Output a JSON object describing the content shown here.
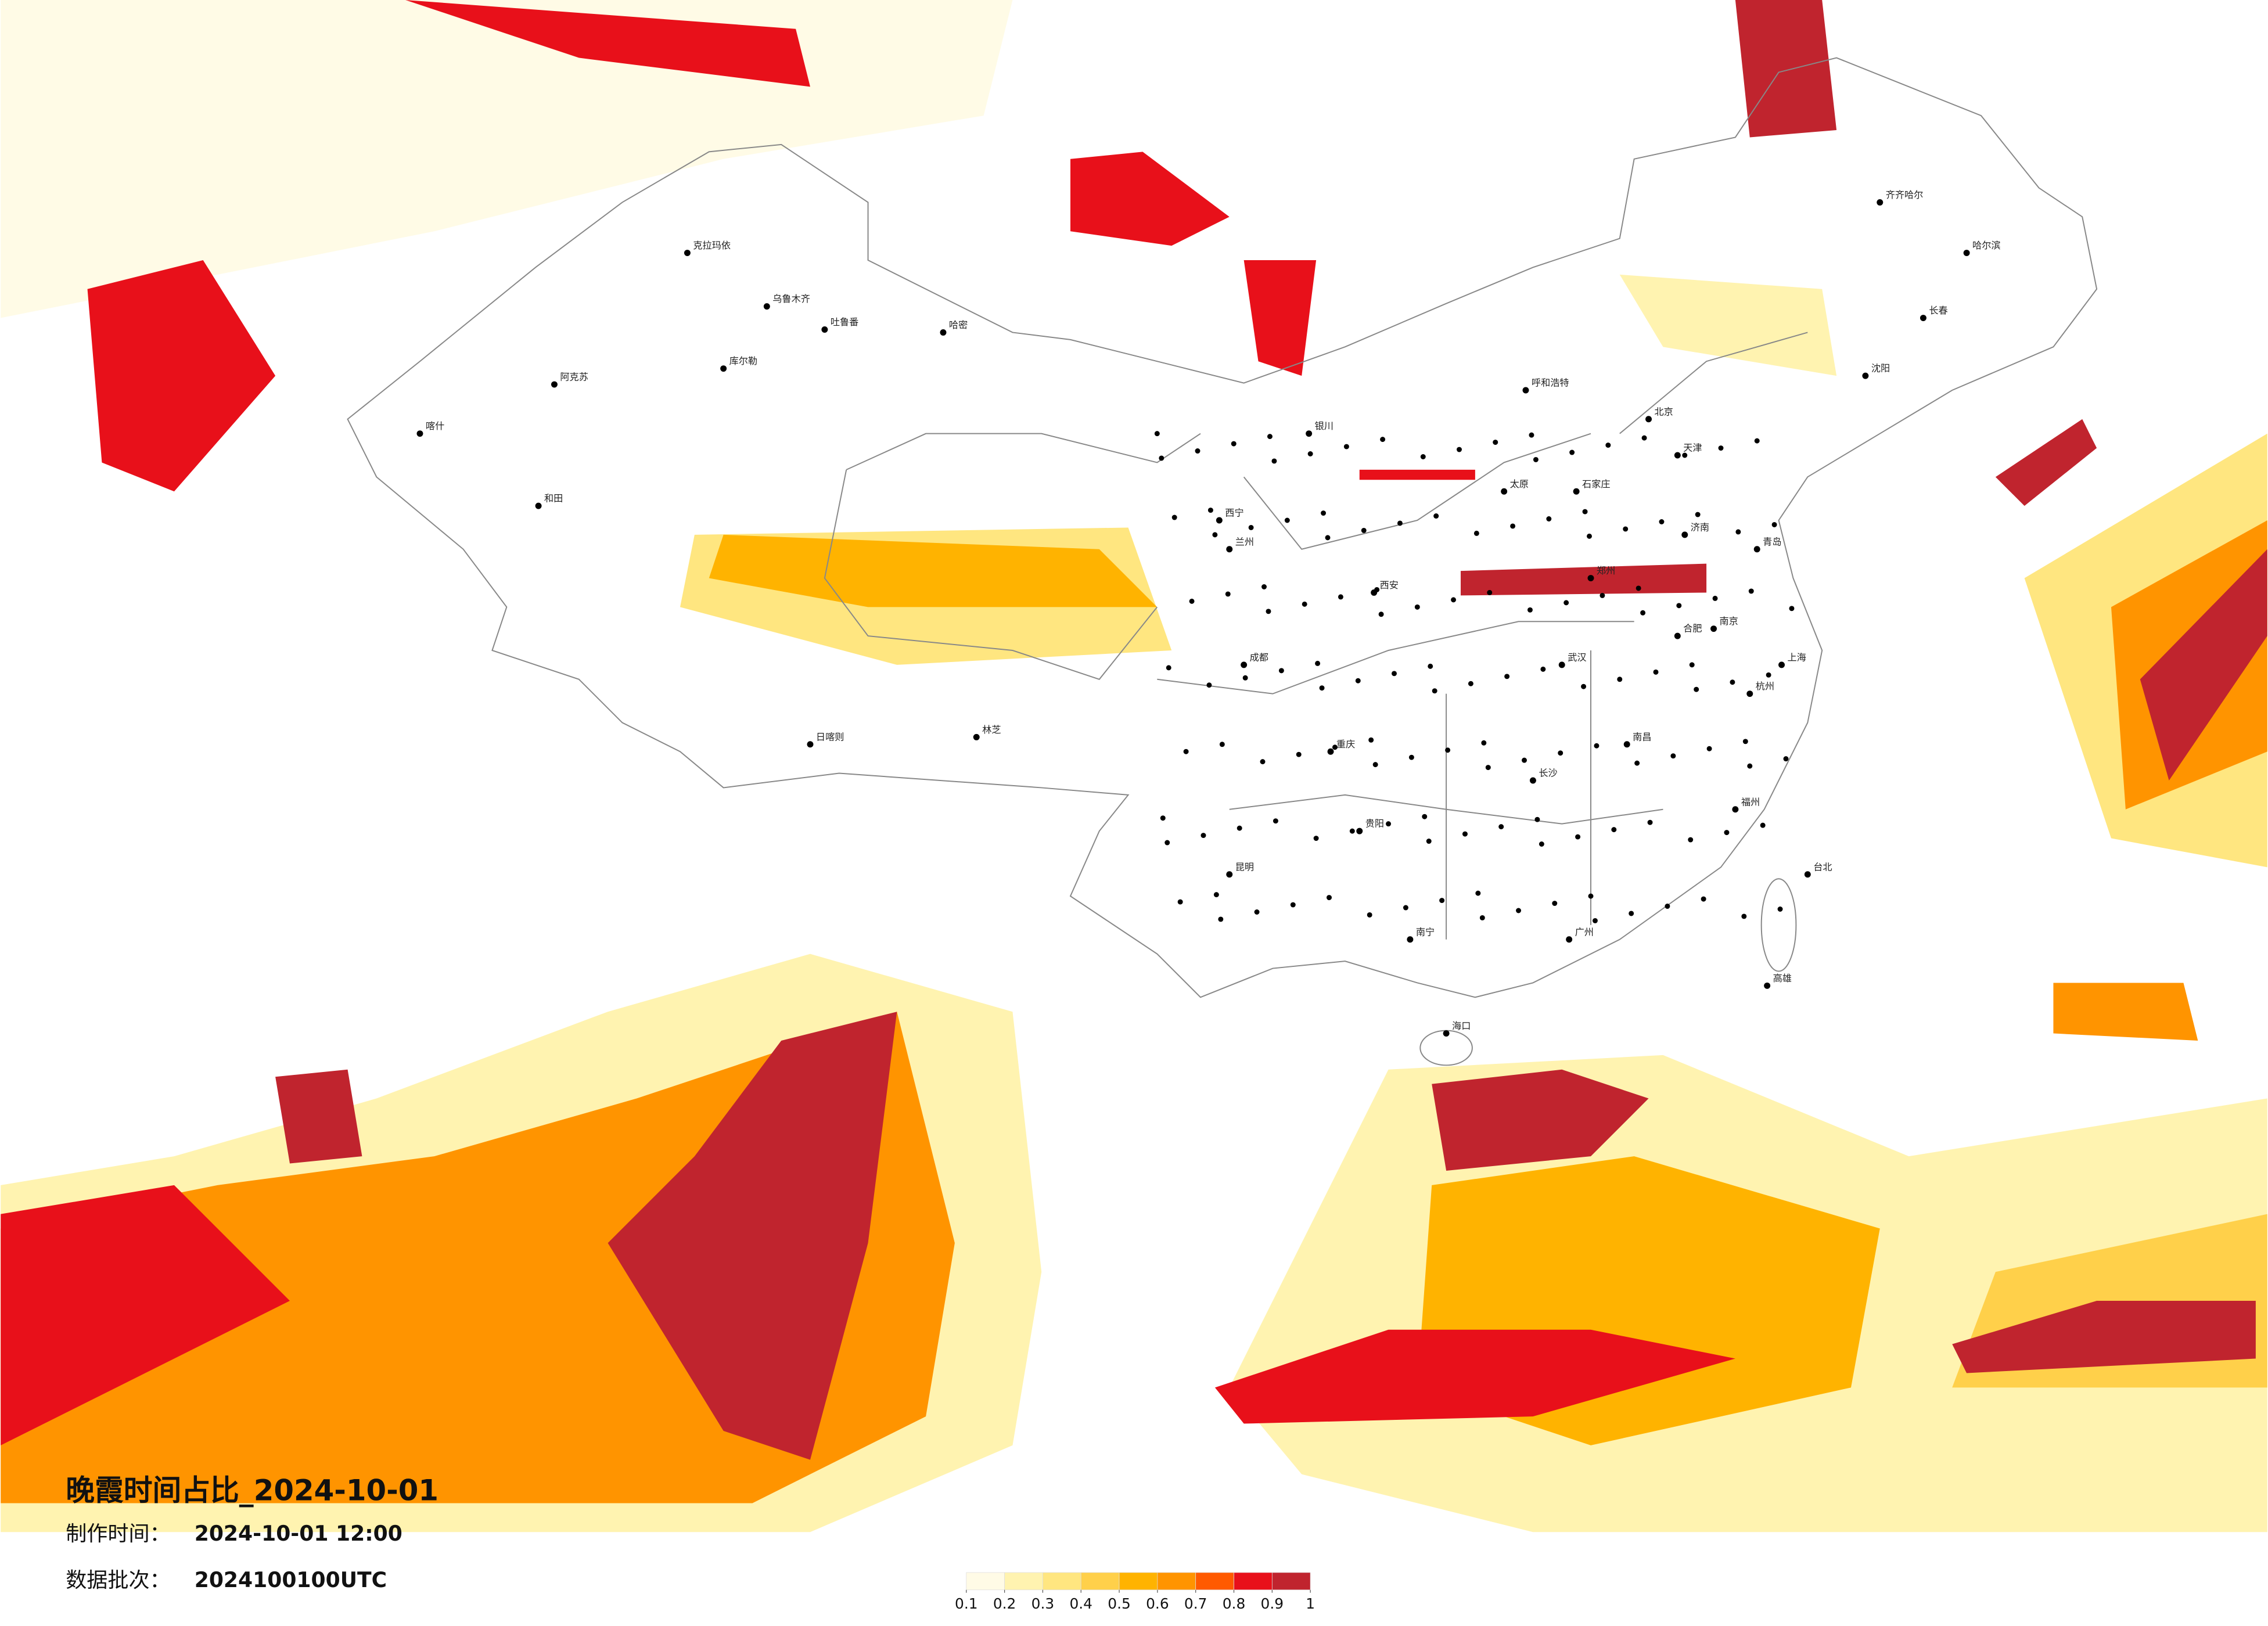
{
  "title": "晚霞时间占比_2024-10-01",
  "production_time": {
    "label": "制作时间：",
    "value": "2024-10-01 12:00"
  },
  "data_batch": {
    "label": "数据批次：",
    "value": "2024100100UTC"
  },
  "legend": {
    "ticks": [
      0.1,
      0.2,
      0.3,
      0.4,
      0.5,
      0.6,
      0.7,
      0.8,
      0.9,
      1
    ],
    "colors": [
      "#fffbe6",
      "#fff3b0",
      "#ffe680",
      "#ffd04a",
      "#ffb300",
      "#ff9400",
      "#ff5a00",
      "#e8101a",
      "#c0242e"
    ]
  },
  "cities": [
    "克拉玛依",
    "乌鲁木齐",
    "吐鲁番",
    "哈密",
    "库尔勒",
    "阿克苏",
    "喀什",
    "和田",
    "日喀则",
    "林芝",
    "西宁",
    "兰州",
    "银川",
    "呼和浩特",
    "北京",
    "天津",
    "石家庄",
    "太原",
    "西安",
    "郑州",
    "济南",
    "青岛",
    "南京",
    "上海",
    "杭州",
    "合肥",
    "武汉",
    "长沙",
    "南昌",
    "福州",
    "广州",
    "南宁",
    "海口",
    "昆明",
    "贵阳",
    "成都",
    "重庆",
    "哈尔滨",
    "长春",
    "沈阳",
    "齐齐哈尔",
    "台北",
    "高雄"
  ]
}
